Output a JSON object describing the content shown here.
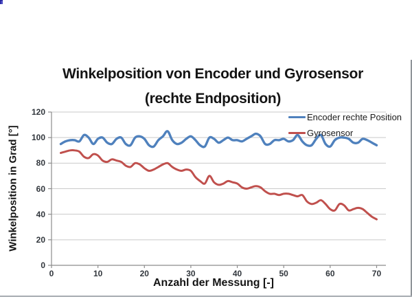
{
  "colors": {
    "encoder_line": "#4F81BD",
    "gyro_line": "#C0504D",
    "gridline": "#C9C9C9",
    "axis": "#8C8C8C",
    "title_text": "#141414",
    "tick_text": "#31363C",
    "frame_border": "#8F9398"
  },
  "chart_data": {
    "type": "line",
    "title_line1": "Winkelposition von Encoder und Gyrosensor",
    "title_line2": "(rechte Endposition)",
    "xlabel": "Anzahl der Messung [-]",
    "ylabel": "Winkelposition in Grad [°]",
    "xlim": [
      0,
      72
    ],
    "ylim": [
      0,
      120
    ],
    "x_ticks": [
      0,
      10,
      20,
      30,
      40,
      50,
      60,
      70
    ],
    "y_ticks": [
      0,
      20,
      40,
      60,
      80,
      100,
      120
    ],
    "grid": true,
    "smooth_lines": true,
    "legend_position": "inside-top-right",
    "x": [
      2,
      3,
      4,
      5,
      6,
      7,
      8,
      9,
      10,
      11,
      12,
      13,
      14,
      15,
      16,
      17,
      18,
      19,
      20,
      21,
      22,
      23,
      24,
      25,
      26,
      27,
      28,
      29,
      30,
      31,
      32,
      33,
      34,
      35,
      36,
      37,
      38,
      39,
      40,
      41,
      42,
      43,
      44,
      45,
      46,
      47,
      48,
      49,
      50,
      51,
      52,
      53,
      54,
      55,
      56,
      57,
      58,
      59,
      60,
      61,
      62,
      63,
      64,
      65,
      66,
      67,
      68,
      69,
      70
    ],
    "series": [
      {
        "name": "Encoder rechte Position",
        "color": "#4F81BD",
        "line_width": 3.4,
        "values": [
          95,
          97,
          98,
          98,
          97,
          102,
          100,
          95,
          99,
          100,
          96,
          95,
          99,
          100,
          95,
          94,
          100,
          101,
          99,
          94,
          93,
          98,
          101,
          105,
          98,
          95,
          96,
          99,
          101,
          98,
          94,
          93,
          100,
          99,
          96,
          98,
          100,
          98,
          98,
          97,
          99,
          101,
          103,
          101,
          95,
          95,
          98,
          98,
          99,
          97,
          98,
          102,
          97,
          94,
          94,
          99,
          102,
          95,
          93,
          98,
          100,
          100,
          99,
          96,
          96,
          99,
          98,
          96,
          94
        ]
      },
      {
        "name": "Gyrosensor",
        "color": "#C0504D",
        "line_width": 3.0,
        "values": [
          88,
          89,
          90,
          90,
          89,
          85,
          84,
          87,
          86,
          82,
          81,
          83,
          82,
          81,
          78,
          77,
          80,
          79,
          76,
          74,
          75,
          77,
          79,
          80,
          77,
          75,
          74,
          75,
          74,
          69,
          66,
          64,
          70,
          65,
          63,
          64,
          66,
          65,
          64,
          61,
          60,
          61,
          62,
          61,
          58,
          56,
          56,
          55,
          56,
          56,
          55,
          54,
          55,
          50,
          48,
          49,
          51,
          48,
          44,
          43,
          48,
          47,
          43,
          44,
          45,
          44,
          41,
          38,
          36
        ]
      }
    ]
  }
}
